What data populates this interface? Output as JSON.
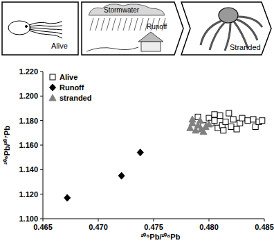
{
  "chart_data": {
    "type": "scatter",
    "annotations": [
      "Alive",
      "Stormwater",
      "Runoff",
      "Stranded"
    ],
    "x_label": "²⁰⁶Pb/²⁰⁸Pb",
    "y_label": "²⁰⁶Pb/²⁰⁷Pb",
    "xlim": [
      0.465,
      0.485
    ],
    "ylim": [
      1.1,
      1.22
    ],
    "xticks": [
      {
        "value": 0.465,
        "label": "0.465"
      },
      {
        "value": 0.47,
        "label": "0.470"
      },
      {
        "value": 0.475,
        "label": "0.475"
      },
      {
        "value": 0.48,
        "label": "0.480"
      },
      {
        "value": 0.485,
        "label": "0.485"
      }
    ],
    "yticks": [
      {
        "value": 1.1,
        "label": "1.100"
      },
      {
        "value": 1.12,
        "label": "1.120"
      },
      {
        "value": 1.14,
        "label": "1.140"
      },
      {
        "value": 1.16,
        "label": "1.160"
      },
      {
        "value": 1.18,
        "label": "1.180"
      },
      {
        "value": 1.2,
        "label": "1.200"
      },
      {
        "value": 1.22,
        "label": "1.220"
      }
    ],
    "grid": false,
    "legend": "top-left",
    "series": [
      {
        "name": "Alive",
        "color": "#000000",
        "marker": "square-open",
        "x": [
          0.479,
          0.4795,
          0.48,
          0.4802,
          0.4805,
          0.4808,
          0.481,
          0.4812,
          0.4815,
          0.4818,
          0.482,
          0.4822,
          0.4825,
          0.4828,
          0.483,
          0.4835,
          0.484,
          0.4842,
          0.4845,
          0.4848,
          0.4813,
          0.4805
        ],
        "values": [
          1.183,
          1.176,
          1.182,
          1.178,
          1.18,
          1.174,
          1.184,
          1.176,
          1.179,
          1.186,
          1.175,
          1.181,
          1.173,
          1.178,
          1.182,
          1.18,
          1.181,
          1.175,
          1.179,
          1.18,
          1.172,
          1.185
        ]
      },
      {
        "name": "Runoff",
        "color": "#000000",
        "marker": "diamond",
        "x": [
          0.4672,
          0.4721,
          0.4738
        ],
        "values": [
          1.117,
          1.135,
          1.154
        ]
      },
      {
        "name": "stranded",
        "color": "#808080",
        "marker": "triangle",
        "x": [
          0.4783,
          0.4785,
          0.4788,
          0.479,
          0.4792,
          0.4795,
          0.4797,
          0.48,
          0.4785,
          0.4793
        ],
        "values": [
          1.174,
          1.178,
          1.172,
          1.176,
          1.18,
          1.171,
          1.175,
          1.177,
          1.181,
          1.173
        ]
      }
    ]
  }
}
